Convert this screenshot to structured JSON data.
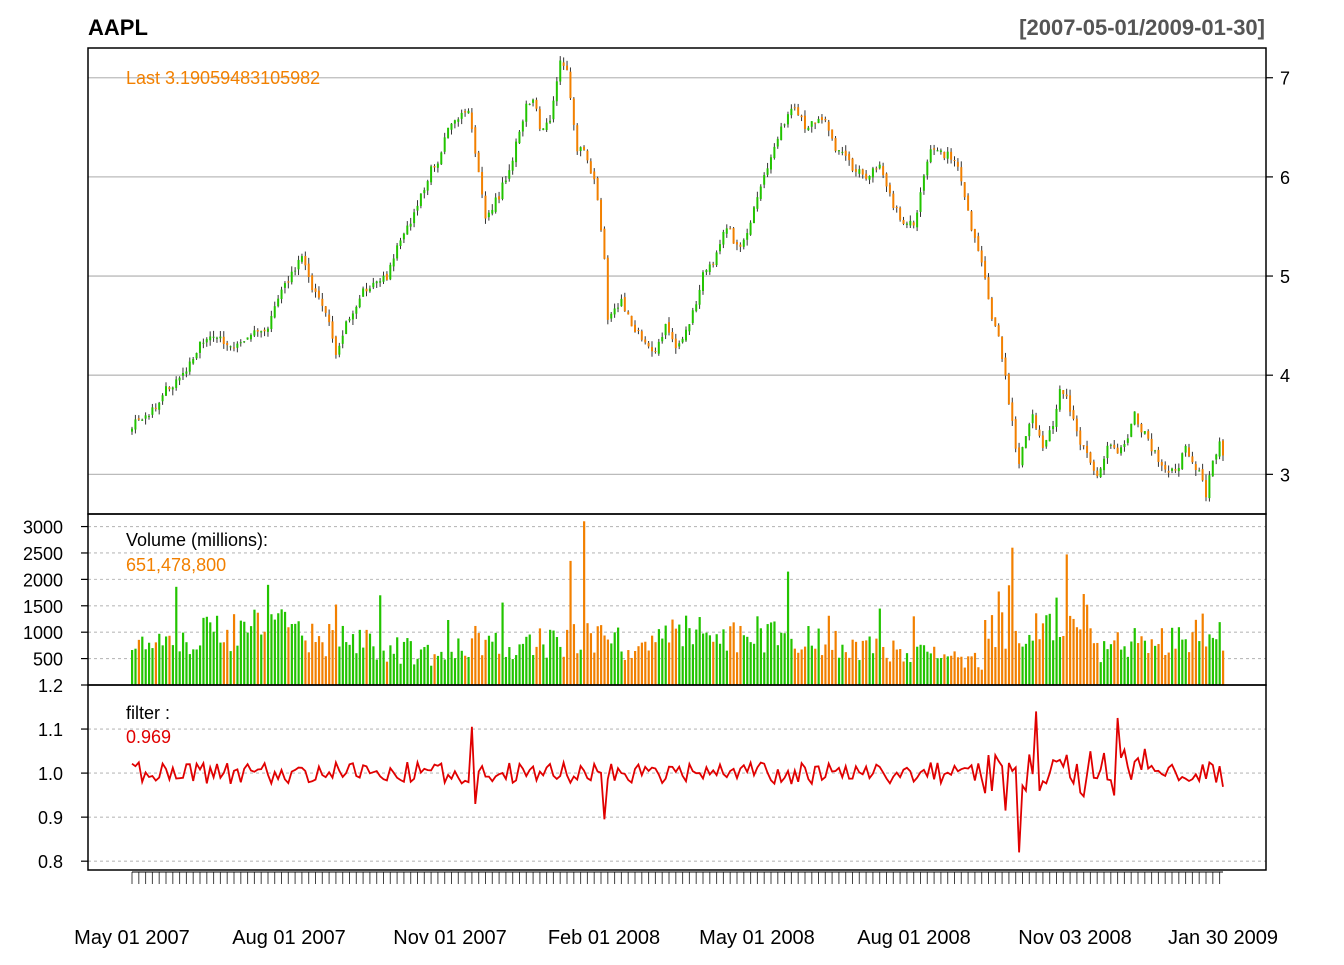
{
  "chart_data": {
    "type": "candlestick",
    "title": "AAPL",
    "date_range": "[2007-05-01/2009-01-30]",
    "colors": {
      "up": "#22c400",
      "down": "#f28000",
      "wick": "#333333",
      "filter": "#e00000",
      "last": "#f28000",
      "grid": "#bbbbbb",
      "axis_text": "#000000"
    },
    "x_ticks": [
      "May 01 2007",
      "Aug 01 2007",
      "Nov 01 2007",
      "Feb 01 2008",
      "May 01 2008",
      "Aug 01 2008",
      "Nov 03 2008",
      "Jan 30 2009"
    ],
    "price_panel": {
      "last_label": "Last 3.19059483105982",
      "y_ticks": [
        "7",
        "6",
        "5",
        "4",
        "3"
      ],
      "ylim": [
        2.6,
        7.3
      ],
      "anchors": [
        [
          0,
          3.5
        ],
        [
          5,
          3.6
        ],
        [
          10,
          3.85
        ],
        [
          15,
          4.0
        ],
        [
          20,
          4.3
        ],
        [
          25,
          4.4
        ],
        [
          30,
          4.25
        ],
        [
          35,
          4.4
        ],
        [
          40,
          4.5
        ],
        [
          45,
          4.9
        ],
        [
          50,
          5.2
        ],
        [
          52,
          4.95
        ],
        [
          55,
          4.8
        ],
        [
          58,
          4.5
        ],
        [
          60,
          4.2
        ],
        [
          63,
          4.5
        ],
        [
          68,
          4.85
        ],
        [
          72,
          4.95
        ],
        [
          75,
          5.0
        ],
        [
          78,
          5.3
        ],
        [
          80,
          5.4
        ],
        [
          85,
          5.8
        ],
        [
          88,
          6.1
        ],
        [
          90,
          6.1
        ],
        [
          93,
          6.5
        ],
        [
          96,
          6.6
        ],
        [
          99,
          6.7
        ],
        [
          102,
          6.05
        ],
        [
          104,
          5.6
        ],
        [
          108,
          5.8
        ],
        [
          112,
          6.2
        ],
        [
          116,
          6.7
        ],
        [
          118,
          6.8
        ],
        [
          120,
          6.5
        ],
        [
          123,
          6.6
        ],
        [
          126,
          7.15
        ],
        [
          128,
          7.05
        ],
        [
          131,
          6.3
        ],
        [
          134,
          6.2
        ],
        [
          137,
          5.8
        ],
        [
          139,
          5.2
        ],
        [
          140,
          4.6
        ],
        [
          144,
          4.75
        ],
        [
          147,
          4.5
        ],
        [
          150,
          4.4
        ],
        [
          154,
          4.2
        ],
        [
          157,
          4.5
        ],
        [
          160,
          4.3
        ],
        [
          164,
          4.5
        ],
        [
          168,
          5.0
        ],
        [
          172,
          5.2
        ],
        [
          175,
          5.5
        ],
        [
          178,
          5.3
        ],
        [
          181,
          5.4
        ],
        [
          184,
          5.8
        ],
        [
          188,
          6.2
        ],
        [
          191,
          6.5
        ],
        [
          195,
          6.7
        ],
        [
          198,
          6.5
        ],
        [
          202,
          6.6
        ],
        [
          205,
          6.5
        ],
        [
          207,
          6.3
        ],
        [
          210,
          6.2
        ],
        [
          213,
          6.05
        ],
        [
          216,
          6.0
        ],
        [
          220,
          6.1
        ],
        [
          222,
          5.9
        ],
        [
          224,
          5.7
        ],
        [
          227,
          5.55
        ],
        [
          230,
          5.5
        ],
        [
          233,
          6.0
        ],
        [
          235,
          6.3
        ],
        [
          238,
          6.25
        ],
        [
          241,
          6.2
        ],
        [
          244,
          6.0
        ],
        [
          247,
          5.5
        ],
        [
          250,
          5.1
        ],
        [
          253,
          4.6
        ],
        [
          255,
          4.35
        ],
        [
          257,
          4.0
        ],
        [
          259,
          3.5
        ],
        [
          261,
          3.1
        ],
        [
          263,
          3.4
        ],
        [
          265,
          3.6
        ],
        [
          268,
          3.3
        ],
        [
          271,
          3.5
        ],
        [
          273,
          3.9
        ],
        [
          275,
          3.8
        ],
        [
          278,
          3.4
        ],
        [
          281,
          3.2
        ],
        [
          284,
          3.0
        ],
        [
          287,
          3.3
        ],
        [
          290,
          3.2
        ],
        [
          293,
          3.4
        ],
        [
          295,
          3.6
        ],
        [
          298,
          3.4
        ],
        [
          301,
          3.2
        ],
        [
          304,
          3.05
        ],
        [
          307,
          3.0
        ],
        [
          310,
          3.3
        ],
        [
          312,
          3.15
        ],
        [
          314,
          3.0
        ],
        [
          316,
          2.8
        ],
        [
          318,
          3.1
        ],
        [
          320,
          3.3
        ],
        [
          321,
          3.19
        ]
      ]
    },
    "volume_panel": {
      "label": "Volume (millions):",
      "last_value": "651,478,800",
      "y_ticks": [
        "3000",
        "2500",
        "2000",
        "1500",
        "1000",
        "500"
      ],
      "ylim": [
        0,
        3200
      ]
    },
    "filter_panel": {
      "label": "filter :",
      "last_value": "0.969",
      "y_ticks": [
        "1.2",
        "1.1",
        "1.0",
        "0.9",
        "0.8"
      ],
      "ylim": [
        0.78,
        1.2
      ]
    }
  }
}
